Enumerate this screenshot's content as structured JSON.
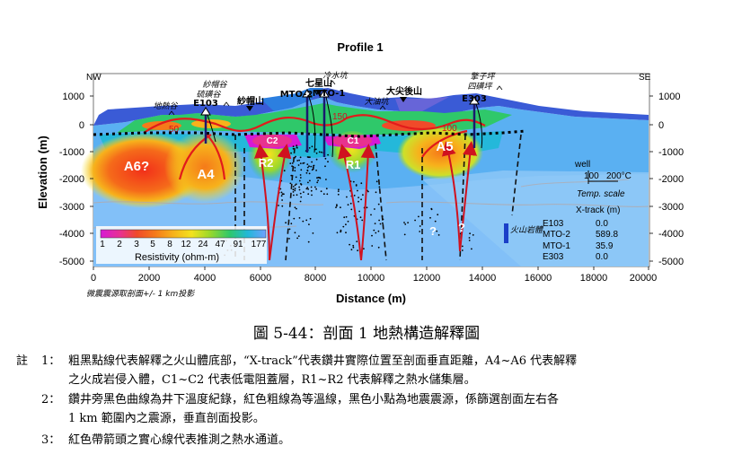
{
  "figure": {
    "title": "Profile 1",
    "left_dir": "NW",
    "right_dir": "SE",
    "y_label": "Elevation (m)",
    "x_label": "Distance (m)",
    "x_ticks": [
      "0",
      "2000",
      "4000",
      "6000",
      "8000",
      "10000",
      "12000",
      "14000",
      "16000",
      "18000",
      "20000"
    ],
    "y_ticks": [
      "1000",
      "0",
      "-1000",
      "-2000",
      "-3000",
      "-4000",
      "-5000"
    ],
    "projection_note": "微震震源取剖面+/- 1 km投影",
    "places": {
      "didongge": "地熱谷",
      "E103": "E103",
      "shamaogu": "紗帽谷",
      "liuhuanggu": "硫磺谷",
      "shamaoshan": "紗帽山",
      "qixingshan": "七星山",
      "lengshuikeng": "冷水坑",
      "MTO2": "MTO-2",
      "MTO1": "MTO-1",
      "dayoukeng": "大油坑",
      "dajianhoushan": "大尖後山",
      "E303": "E303",
      "shuangziping": "擎子坪",
      "sihuangping": "四磺坪"
    },
    "bodies": {
      "A6": "A6?",
      "A4": "A4",
      "A5": "A5",
      "C2": "C2",
      "C1": "C1",
      "R2": "R2",
      "R1": "R1",
      "q1": "?",
      "q2": "?"
    },
    "isotherms": {
      "t50": "50",
      "t100": "100",
      "t150": "150"
    },
    "colorbar": {
      "ticks": [
        "1",
        "2",
        "3",
        "5",
        "8",
        "12",
        "24",
        "47",
        "91",
        "177"
      ],
      "label": "Resistivity (ohm-m)",
      "colors": [
        "#d61ad6",
        "#e8328f",
        "#f04a2a",
        "#f57a1a",
        "#f7b21b",
        "#f3e21e",
        "#9bd82c",
        "#2fc86a",
        "#22b8d8",
        "#6fa0ff"
      ]
    },
    "well_legend": {
      "well": "well",
      "t100": "100",
      "t200": "200°C",
      "temp_scale": "Temp. scale"
    },
    "volcano_legend": "火山岩體",
    "xtrack": {
      "header": "X-track (m)",
      "rows": [
        {
          "well": "E103",
          "value": "0.0"
        },
        {
          "well": "MTO-2",
          "value": "589.8"
        },
        {
          "well": "MTO-1",
          "value": "35.9"
        },
        {
          "well": "E303",
          "value": "0.0"
        }
      ]
    }
  },
  "caption": "圖 5-44：剖面 1 地熱構造解釋圖",
  "notes": {
    "marker": "註",
    "items": [
      {
        "num": "1：",
        "line1": "粗黑點線代表解釋之火山體底部，“X-track”代表鑽井實際位置至剖面垂直距離，A4~A6 代表解釋",
        "line2": "之火成岩侵入體，C1~C2 代表低電阻蓋層，R1~R2 代表解釋之熱水儲集層。"
      },
      {
        "num": "2：",
        "line1": "鑽井旁黑色曲線為井下溫度紀錄，紅色粗線為等溫線，黑色小點為地震震源，係篩選剖面左右各",
        "line2": "1 km 範圍內之震源，垂直剖面投影。"
      },
      {
        "num": "3：",
        "line1": "紅色帶箭頭之實心線代表推測之熱水通道。",
        "line2": ""
      }
    ]
  }
}
